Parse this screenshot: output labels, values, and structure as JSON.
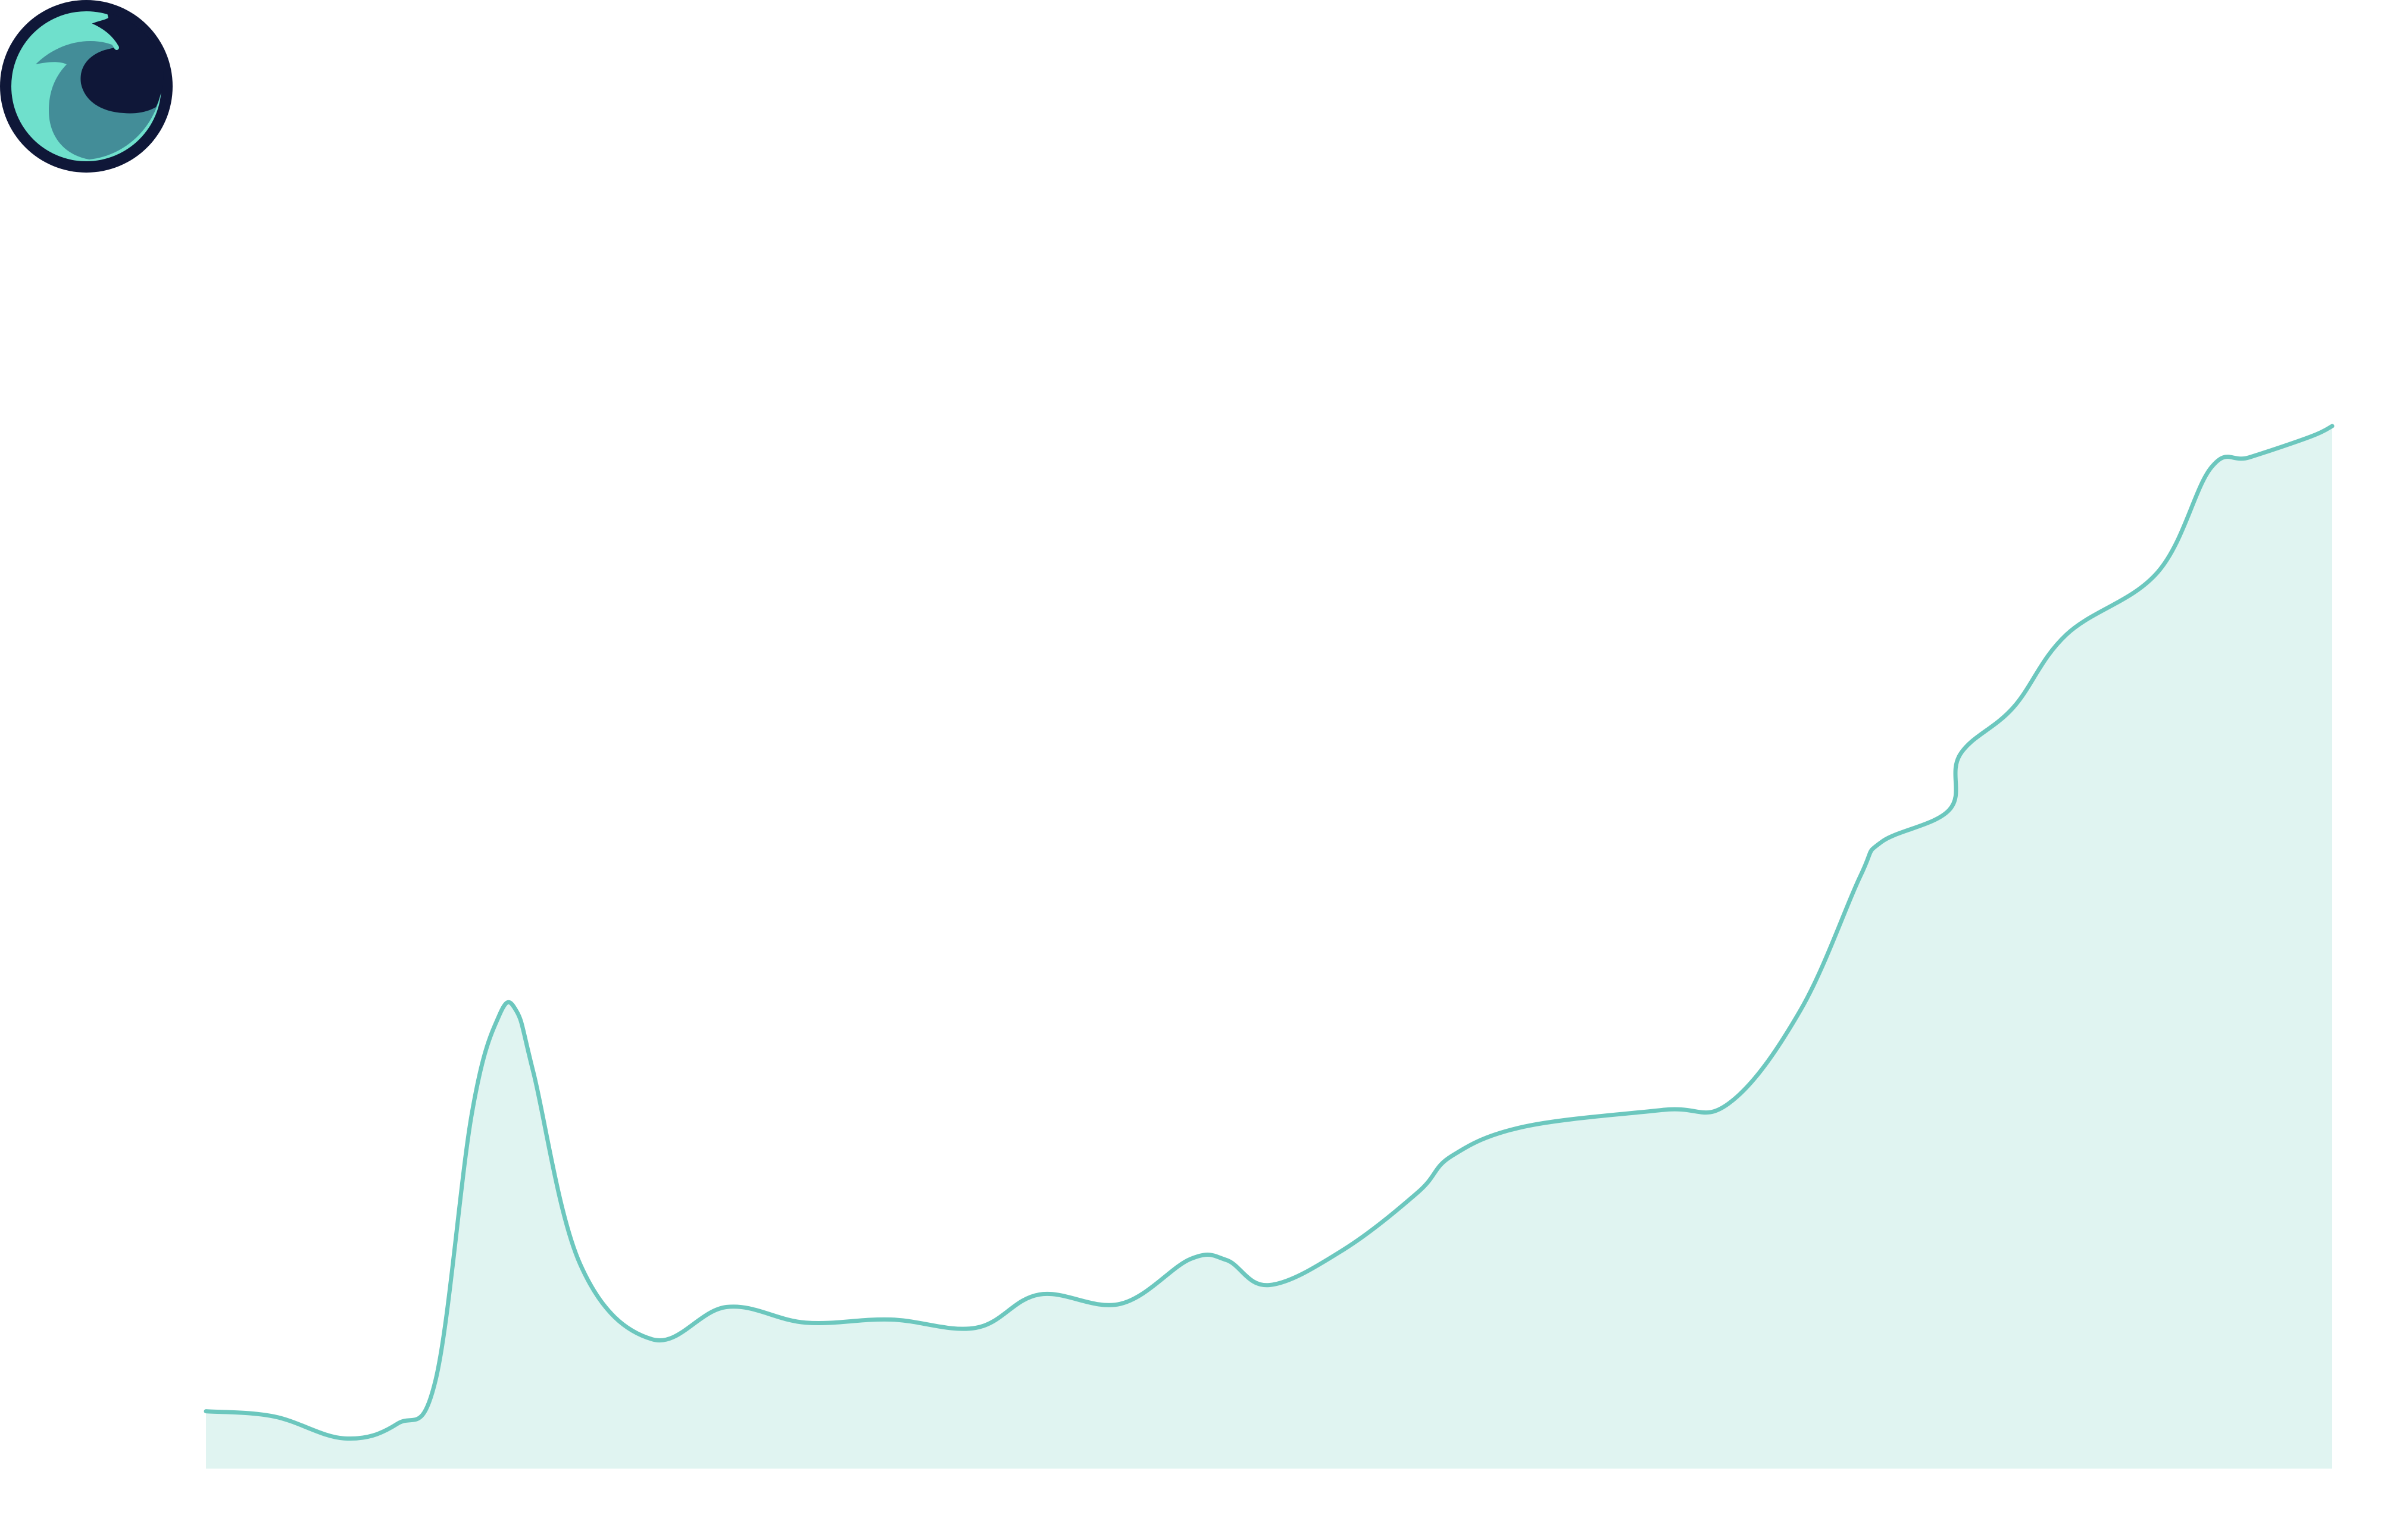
{
  "logo": {
    "icon": "wave-logo-icon",
    "colors": {
      "ring": "#0f1738",
      "light": "#6fe0cc",
      "mid": "#438d98",
      "dark": "#0f1738"
    }
  },
  "chart_data": {
    "type": "area",
    "title": "",
    "xlabel": "",
    "ylabel": "",
    "grid": false,
    "legend": "none",
    "axes_visible": false,
    "colors": {
      "line": "#6cc7be",
      "fill": "#e0f4f1"
    },
    "xlim": [
      0,
      100
    ],
    "ylim": [
      0,
      100
    ],
    "series": [
      {
        "x": [
          0,
          3.2,
          6.5,
          9.0,
          10.8,
          12.5,
          13.8,
          14.6,
          15.4,
          17.6,
          21.0,
          24.5,
          28.2,
          32.2,
          36.2,
          39.2,
          43.0,
          46.3,
          48.0,
          50.0,
          53.5,
          57.0,
          58.6,
          62.0,
          68.5,
          71.6,
          75.0,
          77.8,
          78.8,
          82.0,
          82.5,
          85.0,
          87.5,
          91.8,
          94.3,
          96.1,
          99.0,
          100.0
        ],
        "y": [
          5.5,
          5.0,
          2.9,
          4.3,
          8.5,
          34.0,
          43.5,
          43.9,
          38.0,
          19.6,
          12.4,
          15.5,
          14.0,
          14.3,
          13.5,
          16.7,
          15.8,
          20.1,
          20.0,
          17.6,
          21.0,
          26.5,
          30.0,
          32.8,
          34.4,
          35.0,
          44.0,
          56.8,
          60.1,
          63.2,
          68.5,
          73.0,
          80.0,
          86.0,
          96.0,
          97.0,
          99.0,
          100.0
        ]
      }
    ]
  }
}
